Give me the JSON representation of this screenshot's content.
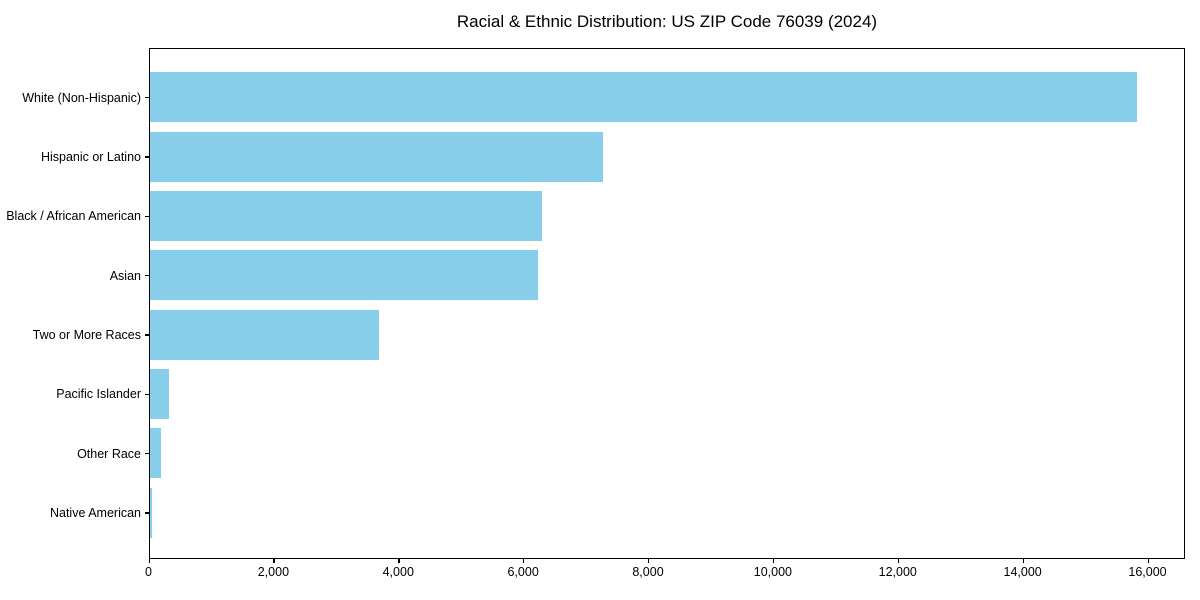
{
  "chart_data": {
    "type": "bar",
    "orientation": "horizontal",
    "title": "Racial & Ethnic Distribution: US ZIP Code 76039 (2024)",
    "categories": [
      "White (Non-Hispanic)",
      "Hispanic or Latino",
      "Black / African American",
      "Asian",
      "Two or More Races",
      "Pacific Islander",
      "Other Race",
      "Native American"
    ],
    "values": [
      15810,
      7270,
      6290,
      6220,
      3670,
      310,
      180,
      40
    ],
    "xlabel": "",
    "ylabel": "",
    "xlim": [
      0,
      16600
    ],
    "x_ticks": [
      0,
      2000,
      4000,
      6000,
      8000,
      10000,
      12000,
      14000,
      16000
    ],
    "x_tick_labels": [
      "0",
      "2,000",
      "4,000",
      "6,000",
      "8,000",
      "10,000",
      "12,000",
      "14,000",
      "16,000"
    ],
    "bar_color": "#87CEEB",
    "axis_color": "#000000",
    "text_color": "#000000",
    "grid": false,
    "legend": "none"
  }
}
